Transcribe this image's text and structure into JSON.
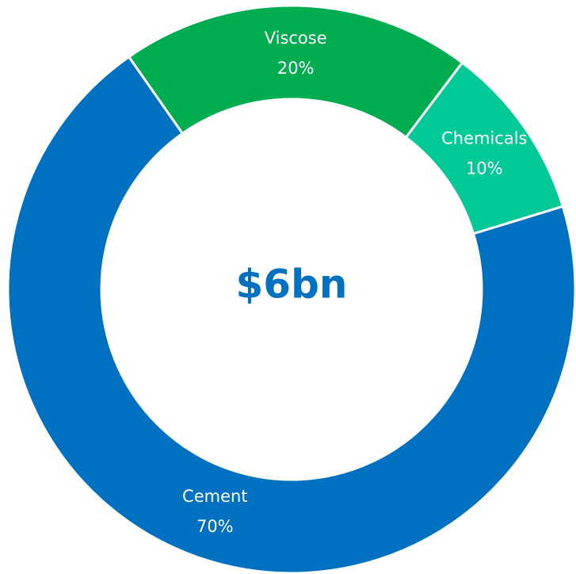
{
  "chart_data": {
    "type": "donut",
    "center_label": "$6bn",
    "categories": [
      "Viscose",
      "Chemicals",
      "Cement"
    ],
    "values": [
      20,
      10,
      70
    ],
    "value_labels": [
      "20%",
      "10%",
      "70%"
    ],
    "colors": [
      "#00ac50",
      "#00c896",
      "#0070c0"
    ]
  }
}
